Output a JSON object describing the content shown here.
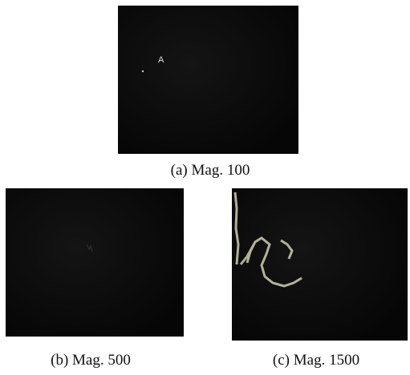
{
  "figure": {
    "panels": [
      {
        "marker": "A",
        "caption": "(a) Mag. 100"
      },
      {
        "caption": "(b) Mag. 500"
      },
      {
        "caption": "(c) Mag. 1500"
      }
    ]
  }
}
